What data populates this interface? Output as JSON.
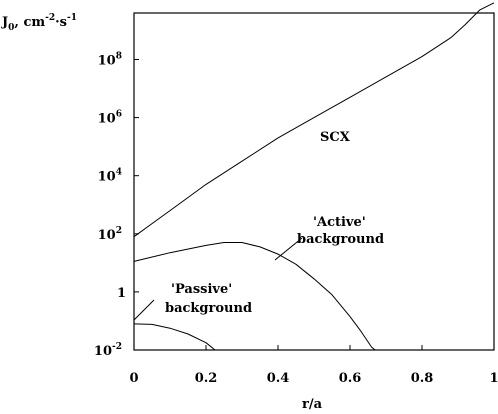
{
  "chart_data": {
    "type": "line",
    "ylabel": {
      "main": "J",
      "sub": "0",
      "unit_a": ", cm",
      "sup_a": "-2",
      "unit_b": "·s",
      "sup_b": "-1"
    },
    "xlabel": "r/a",
    "xlim": [
      0,
      1
    ],
    "ylim_log10": [
      -2,
      9.6
    ],
    "y_scale": "log",
    "x_ticks": [
      "0",
      "0.2",
      "0.4",
      "0.6",
      "0.8",
      "1"
    ],
    "x_tick_values": [
      0,
      0.2,
      0.4,
      0.6,
      0.8,
      1
    ],
    "y_ticks": [
      {
        "value_log10": 8,
        "base": "10",
        "exp": "8"
      },
      {
        "value_log10": 6,
        "base": "10",
        "exp": "6"
      },
      {
        "value_log10": 4,
        "base": "10",
        "exp": "4"
      },
      {
        "value_log10": 2,
        "base": "10",
        "exp": "2"
      },
      {
        "value_log10": 0,
        "base": "1",
        "exp": ""
      },
      {
        "value_log10": -2,
        "base": "10",
        "exp": "-2"
      }
    ],
    "grid": false,
    "series": [
      {
        "name": "SCX",
        "x": [
          0,
          0.05,
          0.1,
          0.2,
          0.3,
          0.4,
          0.5,
          0.6,
          0.7,
          0.8,
          0.88,
          0.92,
          0.96,
          1.0
        ],
        "y_log10": [
          1.9,
          2.35,
          2.8,
          3.7,
          4.5,
          5.3,
          6.0,
          6.7,
          7.4,
          8.1,
          8.75,
          9.2,
          9.7,
          9.95
        ]
      },
      {
        "name": "'Active' background",
        "x": [
          0,
          0.1,
          0.2,
          0.25,
          0.3,
          0.35,
          0.4,
          0.45,
          0.5,
          0.55,
          0.6,
          0.63,
          0.66,
          0.67
        ],
        "y_log10": [
          1.05,
          1.35,
          1.6,
          1.7,
          1.7,
          1.55,
          1.3,
          0.95,
          0.45,
          -0.1,
          -0.85,
          -1.35,
          -1.9,
          -2.0
        ]
      },
      {
        "name": "'Passive' background",
        "x": [
          0,
          0.05,
          0.1,
          0.15,
          0.2,
          0.225
        ],
        "y_log10": [
          -1.1,
          -1.12,
          -1.25,
          -1.45,
          -1.75,
          -2.0
        ]
      }
    ],
    "annotations": [
      {
        "text": "SCX"
      },
      {
        "lines": [
          "'Active'",
          "background"
        ]
      },
      {
        "lines": [
          "'Passive'",
          "background"
        ]
      }
    ]
  }
}
